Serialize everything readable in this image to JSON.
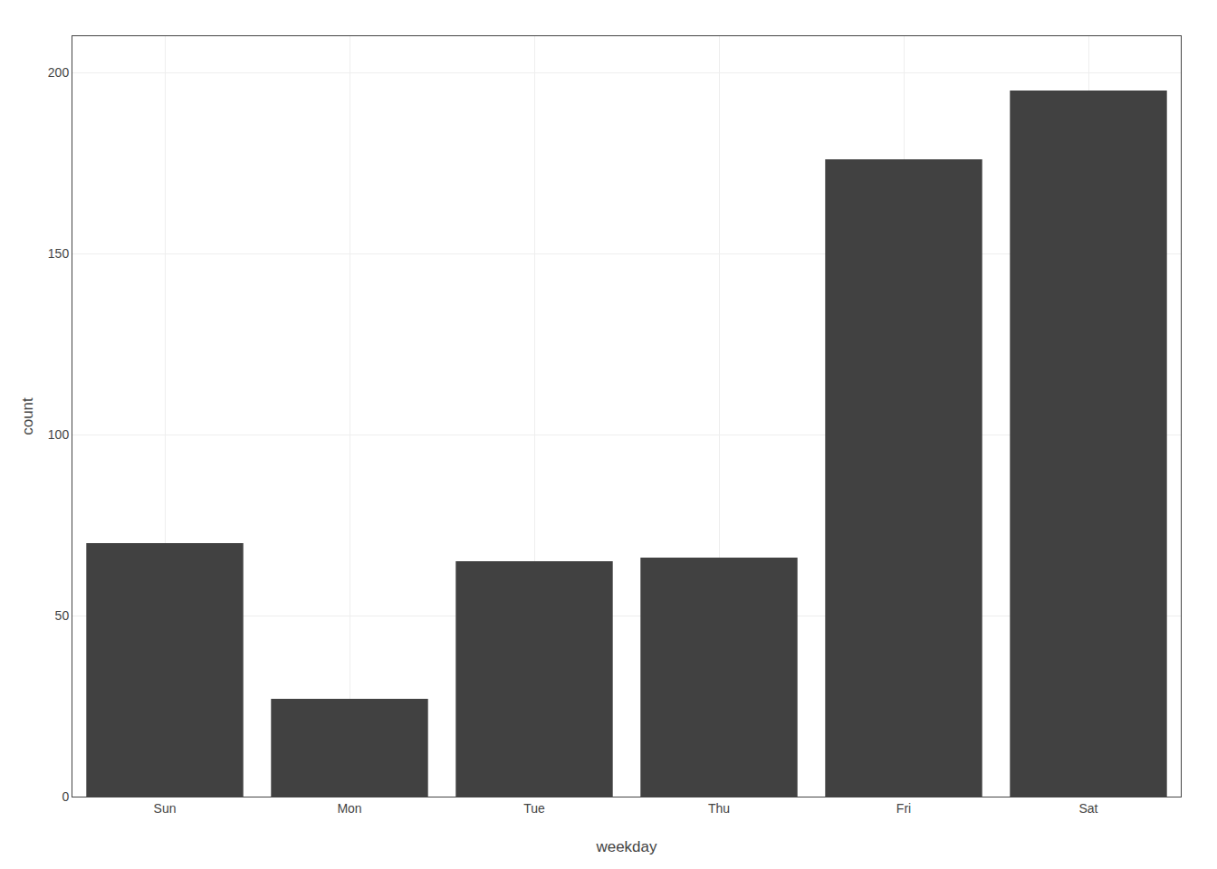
{
  "chart_data": {
    "type": "bar",
    "categories": [
      "Sun",
      "Mon",
      "Tue",
      "Thu",
      "Fri",
      "Sat"
    ],
    "values": [
      70,
      27,
      65,
      66,
      176,
      195
    ],
    "color": "#414141",
    "xlabel": "weekday",
    "ylabel": "count",
    "ylim": [
      0,
      210
    ],
    "yticks": [
      0,
      50,
      100,
      150,
      200
    ],
    "grid": true
  }
}
